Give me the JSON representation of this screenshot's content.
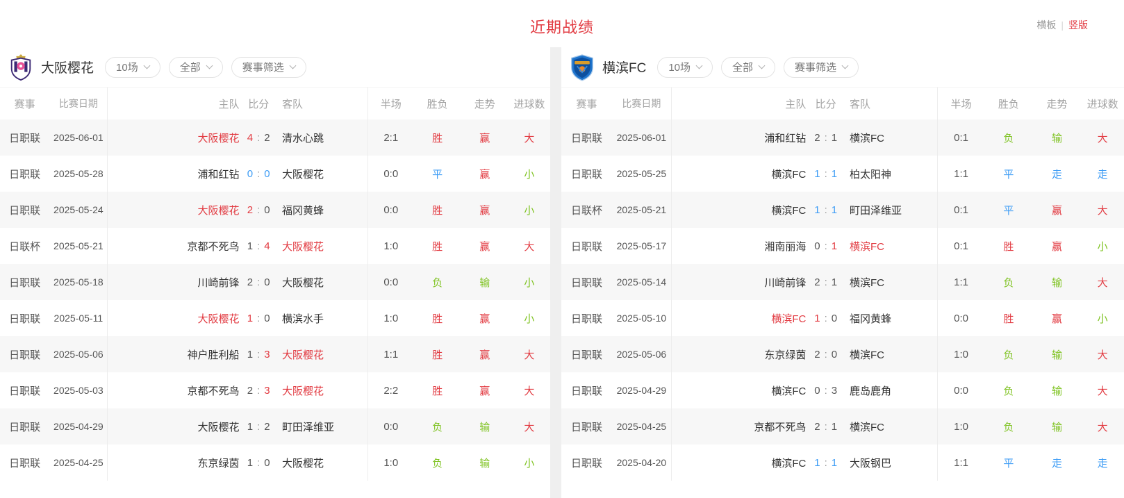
{
  "header": {
    "title": "近期战绩",
    "toggle": {
      "horizontal": "横板",
      "divider": "|",
      "vertical": "竖版"
    }
  },
  "filters": {
    "count": "10场",
    "scope": "全部",
    "competition": "赛事筛选"
  },
  "columns": [
    "赛事",
    "比赛日期",
    "主队",
    "比分",
    "客队",
    "半场",
    "胜负",
    "走势",
    "进球数"
  ],
  "labels": {
    "colon": ":"
  },
  "colors": {
    "accent_red": "#e23b42",
    "win_red": "#e23b42",
    "draw_blue": "#3f9df5",
    "loss_green": "#7fc322",
    "row_alt": "#f7f7f7",
    "header_text": "#a3a3a3"
  },
  "panels": [
    {
      "team": "大阪樱花",
      "rows": [
        {
          "competition": "日职联",
          "date": "2025-06-01",
          "home": "大阪樱花",
          "home_hl": true,
          "score_home": "4",
          "score_home_c": "red",
          "score_away": "2",
          "score_away_c": "dark",
          "away": "清水心跳",
          "away_hl": false,
          "half": "2:1",
          "result": "胜",
          "result_c": "red",
          "trend": "赢",
          "trend_c": "red",
          "goals": "大",
          "goals_c": "red"
        },
        {
          "competition": "日职联",
          "date": "2025-05-28",
          "home": "浦和红钻",
          "home_hl": false,
          "score_home": "0",
          "score_home_c": "blue",
          "score_away": "0",
          "score_away_c": "blue",
          "away": "大阪樱花",
          "away_hl": false,
          "half": "0:0",
          "result": "平",
          "result_c": "blue",
          "trend": "赢",
          "trend_c": "red",
          "goals": "小",
          "goals_c": "green"
        },
        {
          "competition": "日职联",
          "date": "2025-05-24",
          "home": "大阪樱花",
          "home_hl": true,
          "score_home": "2",
          "score_home_c": "red",
          "score_away": "0",
          "score_away_c": "dark",
          "away": "福冈黄蜂",
          "away_hl": false,
          "half": "0:0",
          "result": "胜",
          "result_c": "red",
          "trend": "赢",
          "trend_c": "red",
          "goals": "小",
          "goals_c": "green"
        },
        {
          "competition": "日联杯",
          "date": "2025-05-21",
          "home": "京都不死鸟",
          "home_hl": false,
          "score_home": "1",
          "score_home_c": "dark",
          "score_away": "4",
          "score_away_c": "red",
          "away": "大阪樱花",
          "away_hl": true,
          "half": "1:0",
          "result": "胜",
          "result_c": "red",
          "trend": "赢",
          "trend_c": "red",
          "goals": "大",
          "goals_c": "red"
        },
        {
          "competition": "日职联",
          "date": "2025-05-18",
          "home": "川崎前锋",
          "home_hl": false,
          "score_home": "2",
          "score_home_c": "dark",
          "score_away": "0",
          "score_away_c": "dark",
          "away": "大阪樱花",
          "away_hl": false,
          "half": "0:0",
          "result": "负",
          "result_c": "green",
          "trend": "输",
          "trend_c": "green",
          "goals": "小",
          "goals_c": "green"
        },
        {
          "competition": "日职联",
          "date": "2025-05-11",
          "home": "大阪樱花",
          "home_hl": true,
          "score_home": "1",
          "score_home_c": "red",
          "score_away": "0",
          "score_away_c": "dark",
          "away": "横滨水手",
          "away_hl": false,
          "half": "1:0",
          "result": "胜",
          "result_c": "red",
          "trend": "赢",
          "trend_c": "red",
          "goals": "小",
          "goals_c": "green"
        },
        {
          "competition": "日职联",
          "date": "2025-05-06",
          "home": "神户胜利船",
          "home_hl": false,
          "score_home": "1",
          "score_home_c": "dark",
          "score_away": "3",
          "score_away_c": "red",
          "away": "大阪樱花",
          "away_hl": true,
          "half": "1:1",
          "result": "胜",
          "result_c": "red",
          "trend": "赢",
          "trend_c": "red",
          "goals": "大",
          "goals_c": "red"
        },
        {
          "competition": "日职联",
          "date": "2025-05-03",
          "home": "京都不死鸟",
          "home_hl": false,
          "score_home": "2",
          "score_home_c": "dark",
          "score_away": "3",
          "score_away_c": "red",
          "away": "大阪樱花",
          "away_hl": true,
          "half": "2:2",
          "result": "胜",
          "result_c": "red",
          "trend": "赢",
          "trend_c": "red",
          "goals": "大",
          "goals_c": "red"
        },
        {
          "competition": "日职联",
          "date": "2025-04-29",
          "home": "大阪樱花",
          "home_hl": false,
          "score_home": "1",
          "score_home_c": "dark",
          "score_away": "2",
          "score_away_c": "dark",
          "away": "町田泽维亚",
          "away_hl": false,
          "half": "0:0",
          "result": "负",
          "result_c": "green",
          "trend": "输",
          "trend_c": "green",
          "goals": "大",
          "goals_c": "red"
        },
        {
          "competition": "日职联",
          "date": "2025-04-25",
          "home": "东京绿茵",
          "home_hl": false,
          "score_home": "1",
          "score_home_c": "dark",
          "score_away": "0",
          "score_away_c": "dark",
          "away": "大阪樱花",
          "away_hl": false,
          "half": "1:0",
          "result": "负",
          "result_c": "green",
          "trend": "输",
          "trend_c": "green",
          "goals": "小",
          "goals_c": "green"
        }
      ]
    },
    {
      "team": "横滨FC",
      "rows": [
        {
          "competition": "日职联",
          "date": "2025-06-01",
          "home": "浦和红钻",
          "home_hl": false,
          "score_home": "2",
          "score_home_c": "dark",
          "score_away": "1",
          "score_away_c": "dark",
          "away": "横滨FC",
          "away_hl": false,
          "half": "0:1",
          "result": "负",
          "result_c": "green",
          "trend": "输",
          "trend_c": "green",
          "goals": "大",
          "goals_c": "red"
        },
        {
          "competition": "日职联",
          "date": "2025-05-25",
          "home": "横滨FC",
          "home_hl": false,
          "score_home": "1",
          "score_home_c": "blue",
          "score_away": "1",
          "score_away_c": "blue",
          "away": "柏太阳神",
          "away_hl": false,
          "half": "1:1",
          "result": "平",
          "result_c": "blue",
          "trend": "走",
          "trend_c": "blue",
          "goals": "走",
          "goals_c": "blue"
        },
        {
          "competition": "日联杯",
          "date": "2025-05-21",
          "home": "横滨FC",
          "home_hl": false,
          "score_home": "1",
          "score_home_c": "blue",
          "score_away": "1",
          "score_away_c": "blue",
          "away": "町田泽维亚",
          "away_hl": false,
          "half": "0:1",
          "result": "平",
          "result_c": "blue",
          "trend": "赢",
          "trend_c": "red",
          "goals": "大",
          "goals_c": "red"
        },
        {
          "competition": "日职联",
          "date": "2025-05-17",
          "home": "湘南丽海",
          "home_hl": false,
          "score_home": "0",
          "score_home_c": "dark",
          "score_away": "1",
          "score_away_c": "red",
          "away": "横滨FC",
          "away_hl": true,
          "half": "0:1",
          "result": "胜",
          "result_c": "red",
          "trend": "赢",
          "trend_c": "red",
          "goals": "小",
          "goals_c": "green"
        },
        {
          "competition": "日职联",
          "date": "2025-05-14",
          "home": "川崎前锋",
          "home_hl": false,
          "score_home": "2",
          "score_home_c": "dark",
          "score_away": "1",
          "score_away_c": "dark",
          "away": "横滨FC",
          "away_hl": false,
          "half": "1:1",
          "result": "负",
          "result_c": "green",
          "trend": "输",
          "trend_c": "green",
          "goals": "大",
          "goals_c": "red"
        },
        {
          "competition": "日职联",
          "date": "2025-05-10",
          "home": "横滨FC",
          "home_hl": true,
          "score_home": "1",
          "score_home_c": "red",
          "score_away": "0",
          "score_away_c": "dark",
          "away": "福冈黄蜂",
          "away_hl": false,
          "half": "0:0",
          "result": "胜",
          "result_c": "red",
          "trend": "赢",
          "trend_c": "red",
          "goals": "小",
          "goals_c": "green"
        },
        {
          "competition": "日职联",
          "date": "2025-05-06",
          "home": "东京绿茵",
          "home_hl": false,
          "score_home": "2",
          "score_home_c": "dark",
          "score_away": "0",
          "score_away_c": "dark",
          "away": "横滨FC",
          "away_hl": false,
          "half": "1:0",
          "result": "负",
          "result_c": "green",
          "trend": "输",
          "trend_c": "green",
          "goals": "大",
          "goals_c": "red"
        },
        {
          "competition": "日职联",
          "date": "2025-04-29",
          "home": "横滨FC",
          "home_hl": false,
          "score_home": "0",
          "score_home_c": "dark",
          "score_away": "3",
          "score_away_c": "dark",
          "away": "鹿岛鹿角",
          "away_hl": false,
          "half": "0:0",
          "result": "负",
          "result_c": "green",
          "trend": "输",
          "trend_c": "green",
          "goals": "大",
          "goals_c": "red"
        },
        {
          "competition": "日职联",
          "date": "2025-04-25",
          "home": "京都不死鸟",
          "home_hl": false,
          "score_home": "2",
          "score_home_c": "dark",
          "score_away": "1",
          "score_away_c": "dark",
          "away": "横滨FC",
          "away_hl": false,
          "half": "1:0",
          "result": "负",
          "result_c": "green",
          "trend": "输",
          "trend_c": "green",
          "goals": "大",
          "goals_c": "red"
        },
        {
          "competition": "日职联",
          "date": "2025-04-20",
          "home": "横滨FC",
          "home_hl": false,
          "score_home": "1",
          "score_home_c": "blue",
          "score_away": "1",
          "score_away_c": "blue",
          "away": "大阪钢巴",
          "away_hl": false,
          "half": "1:1",
          "result": "平",
          "result_c": "blue",
          "trend": "走",
          "trend_c": "blue",
          "goals": "走",
          "goals_c": "blue"
        }
      ]
    }
  ]
}
